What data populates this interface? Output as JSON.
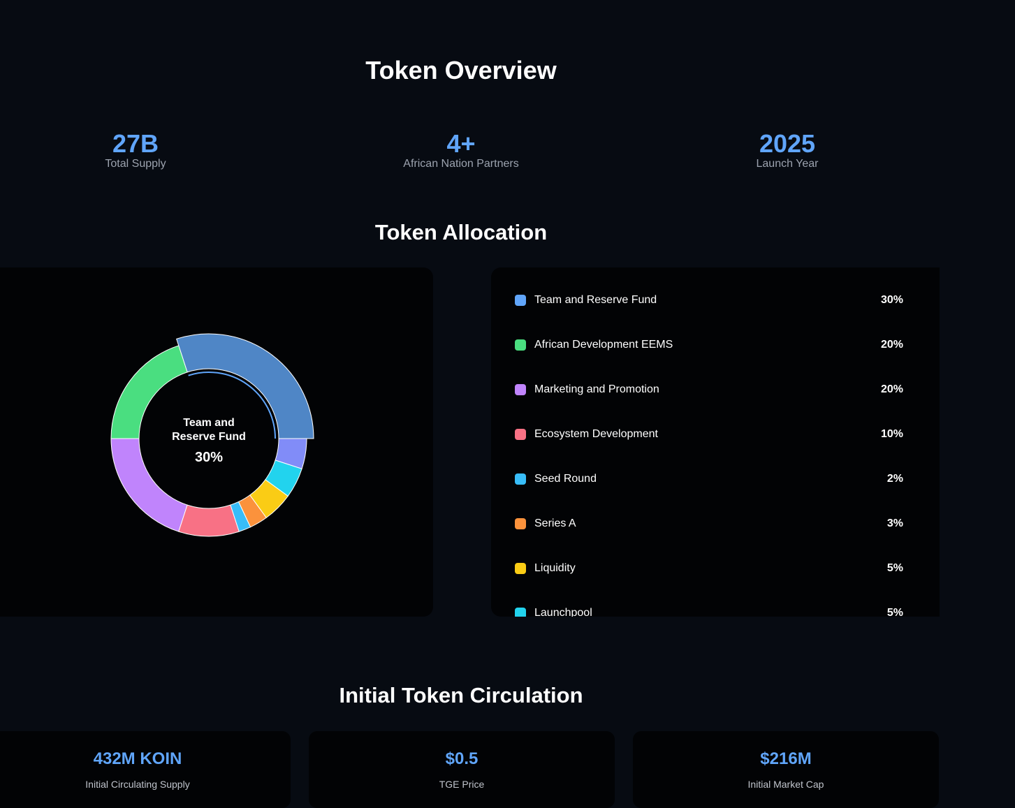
{
  "header": {
    "title": "Token Overview"
  },
  "stats": [
    {
      "value": "27B",
      "label": "Total Supply"
    },
    {
      "value": "4+",
      "label": "African Nation Partners"
    },
    {
      "value": "2025",
      "label": "Launch Year"
    }
  ],
  "allocation": {
    "title": "Token Allocation",
    "chart_data": {
      "type": "donut",
      "categories": [
        "Team and Reserve Fund",
        "African Development EEMS",
        "Marketing and Promotion",
        "Ecosystem Development",
        "Seed Round",
        "Series A",
        "Liquidity",
        "Launchpool",
        null
      ],
      "values": [
        30,
        20,
        20,
        10,
        2,
        3,
        5,
        5,
        5
      ],
      "value_labels": [
        "30%",
        "20%",
        "20%",
        "10%",
        "2%",
        "3%",
        "5%",
        "5%",
        null
      ],
      "colors": [
        "#4f86c6",
        "#4ade80",
        "#c084fc",
        "#f87185",
        "#38bdf8",
        "#fb923c",
        "#facc15",
        "#22d3ee",
        "#818cf8"
      ],
      "legend_colors": [
        "#60a5fa",
        "#4ade80",
        "#c084fc",
        "#f87185",
        "#38bdf8",
        "#fb923c",
        "#facc15",
        "#22d3ee",
        "#818cf8"
      ],
      "highlighted": 0
    }
  },
  "circulation": {
    "title": "Initial Token Circulation",
    "cards": [
      {
        "value": "432M KOIN",
        "label": "Initial Circulating Supply"
      },
      {
        "value": "$0.5",
        "label": "TGE Price"
      },
      {
        "value": "$216M",
        "label": "Initial Market Cap"
      }
    ]
  }
}
